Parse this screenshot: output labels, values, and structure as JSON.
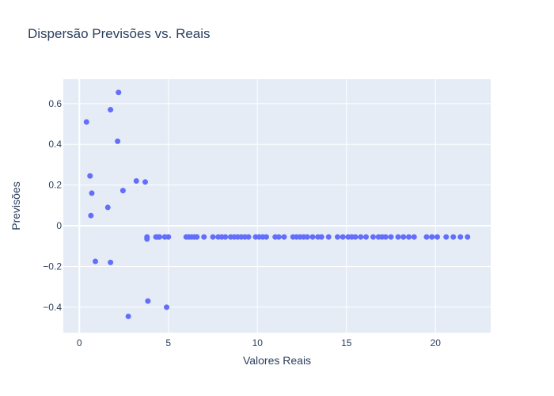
{
  "chart_data": {
    "type": "scatter",
    "title": "Dispersão Previsões vs. Reais",
    "xlabel": "Valores Reais",
    "ylabel": "Previsões",
    "xlim": [
      -0.9,
      23.1
    ],
    "ylim": [
      -0.525,
      0.72
    ],
    "xticks": [
      0,
      5,
      10,
      15,
      20
    ],
    "xtick_labels": [
      "0",
      "5",
      "10",
      "15",
      "20"
    ],
    "yticks": [
      -0.4,
      -0.2,
      0,
      0.2,
      0.4,
      0.6
    ],
    "ytick_labels": [
      "−0.4",
      "−0.2",
      "0",
      "0.2",
      "0.4",
      "0.6"
    ],
    "grid": true,
    "marker_color": "#636efa",
    "plot_background": "#e5ecf6",
    "x": [
      0.4,
      0.6,
      0.65,
      0.7,
      0.9,
      1.6,
      1.75,
      1.75,
      2.15,
      2.2,
      2.45,
      2.75,
      3.2,
      3.7,
      3.8,
      3.8,
      3.85,
      4.3,
      4.4,
      4.5,
      4.8,
      4.9,
      5.0,
      6.0,
      6.15,
      6.3,
      6.45,
      6.6,
      7.0,
      7.5,
      7.8,
      8.0,
      8.2,
      8.5,
      8.7,
      8.9,
      9.1,
      9.3,
      9.5,
      9.9,
      10.1,
      10.3,
      10.5,
      11.0,
      11.2,
      11.5,
      12.0,
      12.2,
      12.4,
      12.6,
      12.8,
      13.1,
      13.4,
      13.6,
      14.0,
      14.5,
      14.8,
      15.1,
      15.3,
      15.5,
      15.8,
      16.1,
      16.5,
      16.8,
      17.0,
      17.2,
      17.5,
      17.9,
      18.2,
      18.5,
      18.8,
      19.5,
      19.8,
      20.1,
      20.6,
      21.0,
      21.4,
      21.8
    ],
    "y": [
      0.51,
      0.245,
      0.05,
      0.16,
      -0.175,
      0.09,
      -0.18,
      0.57,
      0.415,
      0.655,
      0.173,
      -0.445,
      0.22,
      0.215,
      -0.055,
      -0.065,
      -0.37,
      -0.055,
      -0.055,
      -0.055,
      -0.055,
      -0.4,
      -0.055,
      -0.055,
      -0.055,
      -0.055,
      -0.055,
      -0.055,
      -0.055,
      -0.055,
      -0.055,
      -0.055,
      -0.055,
      -0.055,
      -0.055,
      -0.055,
      -0.055,
      -0.055,
      -0.055,
      -0.055,
      -0.055,
      -0.055,
      -0.055,
      -0.055,
      -0.055,
      -0.055,
      -0.055,
      -0.055,
      -0.055,
      -0.055,
      -0.055,
      -0.055,
      -0.055,
      -0.055,
      -0.055,
      -0.055,
      -0.055,
      -0.055,
      -0.055,
      -0.055,
      -0.055,
      -0.055,
      -0.055,
      -0.055,
      -0.055,
      -0.055,
      -0.055,
      -0.055,
      -0.055,
      -0.055,
      -0.055,
      -0.055,
      -0.055,
      -0.055,
      -0.055,
      -0.055,
      -0.055,
      -0.055
    ]
  }
}
